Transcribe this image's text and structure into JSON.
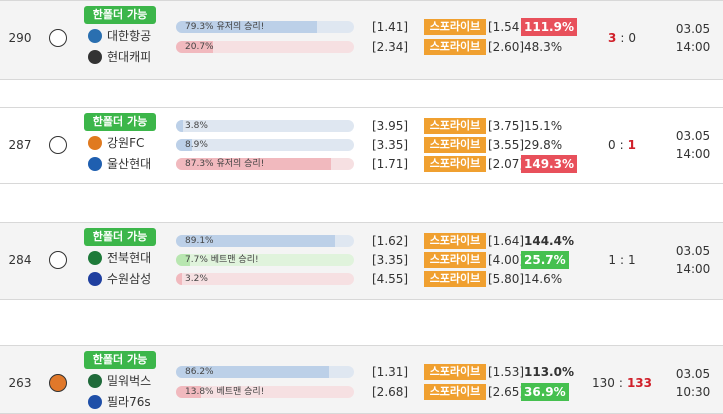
{
  "rows": [
    {
      "id": "290",
      "sport": "volleyball",
      "badge": "한폴더 가능",
      "teams": [
        {
          "name": "대한항공",
          "color": "#2a6fb0"
        },
        {
          "name": "현대캐피",
          "color": "#333333"
        }
      ],
      "options": [
        {
          "bar": {
            "value": 79.3,
            "label": "79.3% 유저의 승리!",
            "color": "blue"
          },
          "odds": "[1.41]",
          "live": "스포라이브",
          "live_odds": "[1.54",
          "pct": "111.9%",
          "style": "red"
        },
        {
          "bar": {
            "value": 20.7,
            "label": "20.7%",
            "color": "red"
          },
          "odds": "[2.34]",
          "live": "스포라이브",
          "live_odds": "[2.60]",
          "pct": "48.3%"
        }
      ],
      "score": {
        "home": "3",
        "sep": ":",
        "away": "0",
        "win": "home"
      },
      "date": "03.05",
      "time": "14:00"
    },
    {
      "id": "287",
      "sport": "soccer",
      "badge": "한폴더 가능",
      "teams": [
        {
          "name": "강원FC",
          "color": "#e07a1f"
        },
        {
          "name": "울산현대",
          "color": "#1f5fb0"
        }
      ],
      "options": [
        {
          "bar": {
            "value": 3.8,
            "label": "3.8%",
            "color": "blue"
          },
          "odds": "[3.95]",
          "live": "스포라이브",
          "live_odds": "[3.75]",
          "pct": "15.1%"
        },
        {
          "bar": {
            "value": 8.9,
            "label": "8.9%",
            "color": "blue"
          },
          "odds": "[3.35]",
          "live": "스포라이브",
          "live_odds": "[3.55]",
          "pct": "29.8%"
        },
        {
          "bar": {
            "value": 87.3,
            "label": "87.3% 유저의 승리!",
            "color": "red"
          },
          "odds": "[1.71]",
          "live": "스포라이브",
          "live_odds": "[2.07]",
          "pct": "149.3%",
          "style": "red"
        }
      ],
      "score": {
        "home": "0",
        "sep": ":",
        "away": "1",
        "win": "away"
      },
      "date": "03.05",
      "time": "14:00"
    },
    {
      "id": "284",
      "sport": "soccer",
      "badge": "한폴더 가능",
      "teams": [
        {
          "name": "전북현대",
          "color": "#1e7a3a"
        },
        {
          "name": "수원삼성",
          "color": "#1f3f9f"
        }
      ],
      "options": [
        {
          "bar": {
            "value": 89.1,
            "label": "89.1%",
            "color": "blue"
          },
          "odds": "[1.62]",
          "live": "스포라이브",
          "live_odds": "[1.64]",
          "pct": "144.4%",
          "style": "bold"
        },
        {
          "bar": {
            "value": 7.7,
            "label": "7.7% 베트맨 승리!",
            "color": "green"
          },
          "odds": "[3.35]",
          "live": "스포라이브",
          "live_odds": "[4.00]",
          "pct": "25.7%",
          "style": "green"
        },
        {
          "bar": {
            "value": 3.2,
            "label": "3.2%",
            "color": "red"
          },
          "odds": "[4.55]",
          "live": "스포라이브",
          "live_odds": "[5.80]",
          "pct": "14.6%"
        }
      ],
      "score": {
        "home": "1",
        "sep": ":",
        "away": "1"
      },
      "date": "03.05",
      "time": "14:00"
    },
    {
      "id": "263",
      "sport": "basketball",
      "badge": "한폴더 가능",
      "teams": [
        {
          "name": "밀워벅스",
          "color": "#1f6a3a"
        },
        {
          "name": "필라76s",
          "color": "#1f4fa8"
        }
      ],
      "options": [
        {
          "bar": {
            "value": 86.2,
            "label": "86.2%",
            "color": "blue"
          },
          "odds": "[1.31]",
          "live": "스포라이브",
          "live_odds": "[1.53]",
          "pct": "113.0%",
          "style": "bold"
        },
        {
          "bar": {
            "value": 13.8,
            "label": "13.8% 베트맨 승리!",
            "color": "red"
          },
          "odds": "[2.68]",
          "live": "스포라이브",
          "live_odds": "[2.65]",
          "pct": "36.9%",
          "style": "green"
        }
      ],
      "score": {
        "home": "130",
        "sep": ":",
        "away": "133",
        "win": "away"
      },
      "date": "03.05",
      "time": "10:30"
    }
  ]
}
